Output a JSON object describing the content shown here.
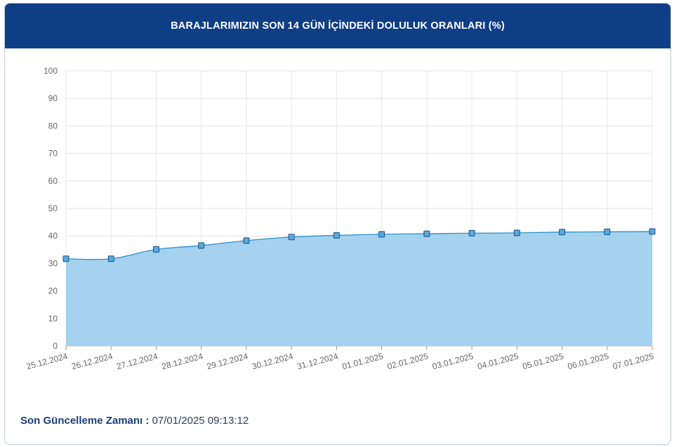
{
  "header": {
    "title": "BARAJLARIMIZIN SON 14 GÜN İÇİNDEKİ DOLULUK ORANLARI (%)"
  },
  "footer": {
    "label": "Son Güncelleme Zamanı :",
    "value": "07/01/2025 09:13:12"
  },
  "colors": {
    "header": "#0e3e86",
    "area": "#9fd0ee",
    "line": "#2f8fc9",
    "marker": "#5aa9dc"
  },
  "chart_data": {
    "type": "area",
    "categories": [
      "25.12.2024",
      "26.12.2024",
      "27.12.2024",
      "28.12.2024",
      "29.12.2024",
      "30.12.2024",
      "31.12.2024",
      "01.01.2025",
      "02.01.2025",
      "03.01.2025",
      "04.01.2025",
      "05.01.2025",
      "06.01.2025",
      "07.01.2025"
    ],
    "values": [
      31.7,
      31.7,
      35.1,
      36.5,
      38.3,
      39.6,
      40.2,
      40.6,
      40.8,
      41.0,
      41.1,
      41.4,
      41.5,
      41.6
    ],
    "yticks": [
      "0",
      "10",
      "20",
      "30",
      "40",
      "50",
      "60",
      "70",
      "80",
      "90",
      "100"
    ],
    "ylim": [
      0,
      100
    ],
    "grid": true
  }
}
